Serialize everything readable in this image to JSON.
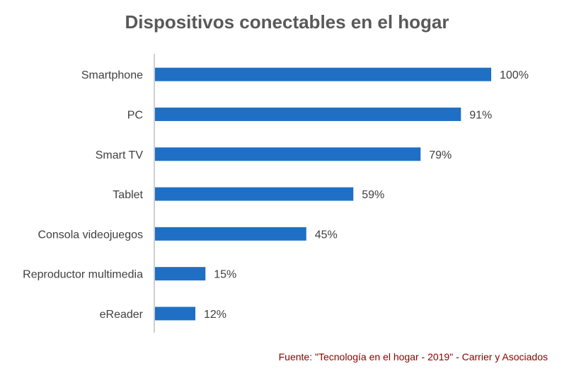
{
  "chart_data": {
    "type": "bar",
    "orientation": "horizontal",
    "title": "Dispositivos conectables en el hogar",
    "categories": [
      "Smartphone",
      "PC",
      "Smart TV",
      "Tablet",
      "Consola videojuegos",
      "Reproductor multimedia",
      "eReader"
    ],
    "values": [
      100,
      91,
      79,
      59,
      45,
      15,
      12
    ],
    "data_labels": [
      "100%",
      "91%",
      "79%",
      "59%",
      "45%",
      "15%",
      "12%"
    ],
    "xlim": [
      0,
      100
    ],
    "grid": false,
    "legend": "none",
    "bar_color": "#1f6fc5"
  },
  "source": "Fuente: \"Tecnología en el hogar - 2019\" - Carrier y Asociados"
}
